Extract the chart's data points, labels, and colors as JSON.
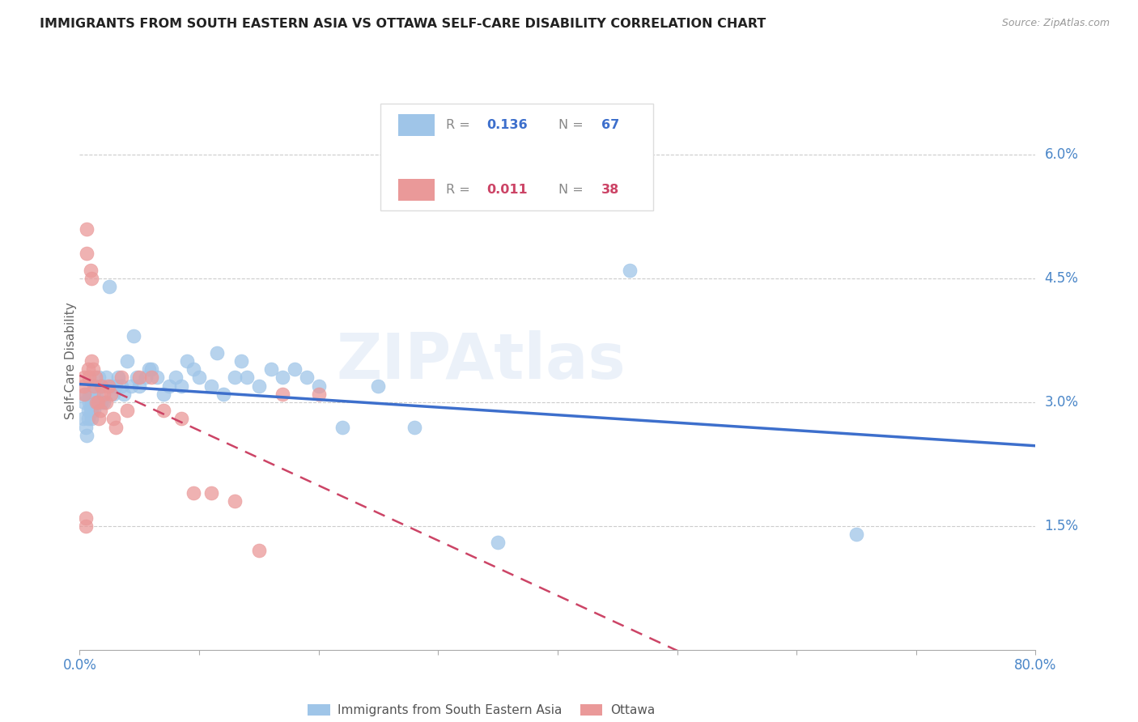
{
  "title": "IMMIGRANTS FROM SOUTH EASTERN ASIA VS OTTAWA SELF-CARE DISABILITY CORRELATION CHART",
  "source": "Source: ZipAtlas.com",
  "ylabel": "Self-Care Disability",
  "blue_color": "#9fc5e8",
  "pink_color": "#ea9999",
  "line_blue": "#3d6fcc",
  "line_pink": "#cc4466",
  "watermark": "ZIPAtlas",
  "xlim": [
    0.0,
    0.8
  ],
  "ylim": [
    0.0,
    0.07
  ],
  "y_tick_values": [
    0.015,
    0.03,
    0.045,
    0.06
  ],
  "y_tick_labels": [
    "1.5%",
    "3.0%",
    "4.5%",
    "6.0%"
  ],
  "blue_x": [
    0.003,
    0.004,
    0.005,
    0.005,
    0.006,
    0.007,
    0.007,
    0.008,
    0.008,
    0.009,
    0.009,
    0.01,
    0.01,
    0.01,
    0.011,
    0.011,
    0.012,
    0.012,
    0.013,
    0.014,
    0.015,
    0.016,
    0.018,
    0.019,
    0.02,
    0.022,
    0.025,
    0.027,
    0.028,
    0.03,
    0.032,
    0.035,
    0.037,
    0.04,
    0.043,
    0.045,
    0.048,
    0.05,
    0.055,
    0.058,
    0.06,
    0.065,
    0.07,
    0.075,
    0.08,
    0.085,
    0.09,
    0.095,
    0.1,
    0.11,
    0.115,
    0.12,
    0.13,
    0.135,
    0.14,
    0.15,
    0.16,
    0.17,
    0.18,
    0.19,
    0.2,
    0.22,
    0.25,
    0.28,
    0.35,
    0.46,
    0.65
  ],
  "blue_y": [
    0.028,
    0.03,
    0.031,
    0.027,
    0.026,
    0.029,
    0.028,
    0.031,
    0.03,
    0.029,
    0.031,
    0.028,
    0.029,
    0.03,
    0.03,
    0.031,
    0.031,
    0.029,
    0.032,
    0.031,
    0.03,
    0.033,
    0.03,
    0.032,
    0.03,
    0.033,
    0.044,
    0.032,
    0.031,
    0.032,
    0.033,
    0.032,
    0.031,
    0.035,
    0.032,
    0.038,
    0.033,
    0.032,
    0.033,
    0.034,
    0.034,
    0.033,
    0.031,
    0.032,
    0.033,
    0.032,
    0.035,
    0.034,
    0.033,
    0.032,
    0.036,
    0.031,
    0.033,
    0.035,
    0.033,
    0.032,
    0.034,
    0.033,
    0.034,
    0.033,
    0.032,
    0.027,
    0.032,
    0.027,
    0.013,
    0.046,
    0.014
  ],
  "pink_x": [
    0.003,
    0.004,
    0.004,
    0.005,
    0.005,
    0.006,
    0.006,
    0.007,
    0.008,
    0.009,
    0.01,
    0.01,
    0.011,
    0.012,
    0.013,
    0.014,
    0.015,
    0.016,
    0.017,
    0.018,
    0.02,
    0.022,
    0.024,
    0.026,
    0.028,
    0.03,
    0.035,
    0.04,
    0.05,
    0.06,
    0.07,
    0.085,
    0.095,
    0.11,
    0.13,
    0.15,
    0.17,
    0.2
  ],
  "pink_y": [
    0.032,
    0.033,
    0.031,
    0.015,
    0.016,
    0.051,
    0.048,
    0.034,
    0.033,
    0.046,
    0.045,
    0.035,
    0.034,
    0.032,
    0.033,
    0.03,
    0.03,
    0.028,
    0.029,
    0.032,
    0.031,
    0.03,
    0.032,
    0.031,
    0.028,
    0.027,
    0.033,
    0.029,
    0.033,
    0.033,
    0.029,
    0.028,
    0.019,
    0.019,
    0.018,
    0.012,
    0.031,
    0.031
  ]
}
